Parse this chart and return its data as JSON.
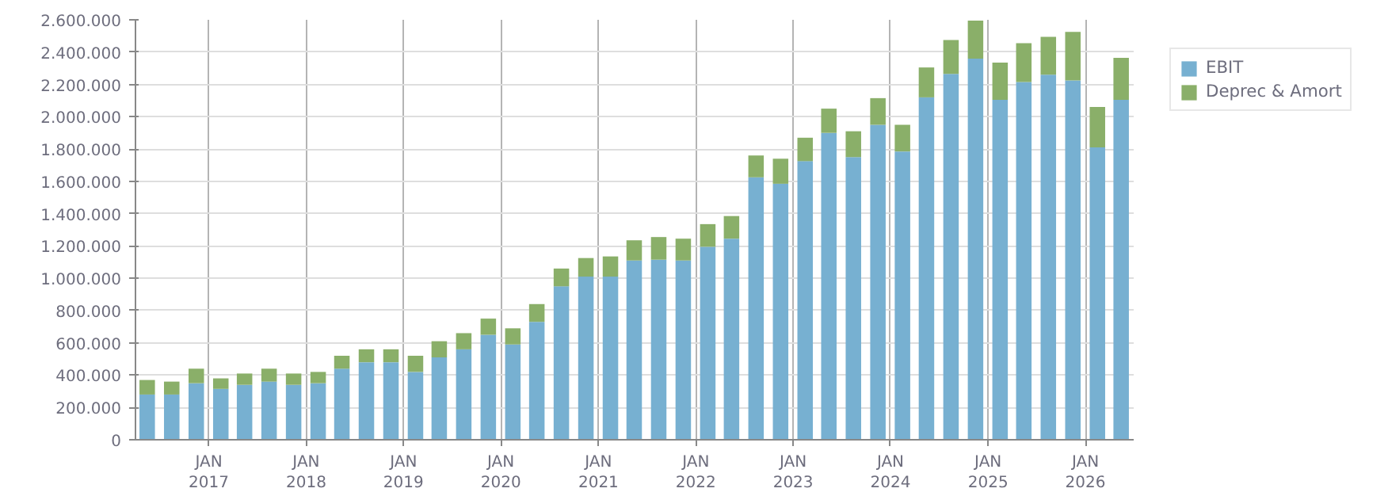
{
  "chart_data": {
    "type": "bar",
    "stacked": true,
    "x": [
      "2016-05-15",
      "2016-08-15",
      "2016-11-15",
      "2017-02-15",
      "2017-05-15",
      "2017-08-15",
      "2017-11-15",
      "2018-02-15",
      "2018-05-15",
      "2018-08-15",
      "2018-11-15",
      "2019-02-15",
      "2019-05-15",
      "2019-08-15",
      "2019-11-15",
      "2020-02-15",
      "2020-05-15",
      "2020-08-15",
      "2020-11-15",
      "2021-02-15",
      "2021-05-15",
      "2021-08-15",
      "2021-11-15",
      "2022-02-15",
      "2022-05-15",
      "2022-08-15",
      "2022-11-15",
      "2023-02-15",
      "2023-05-15",
      "2023-08-15",
      "2023-11-15",
      "2024-02-15",
      "2024-05-15",
      "2024-08-15",
      "2024-11-15",
      "2025-02-15",
      "2025-05-15",
      "2025-08-15",
      "2025-11-15",
      "2026-02-15",
      "2026-05-15"
    ],
    "series": [
      {
        "name": "EBIT",
        "color": "#77b0d1",
        "values": [
          280000,
          280000,
          350000,
          315000,
          340000,
          360000,
          340000,
          350000,
          440000,
          480000,
          480000,
          420000,
          510000,
          560000,
          650000,
          590000,
          730000,
          950000,
          1010000,
          1010000,
          1110000,
          1115000,
          1110000,
          1195000,
          1245000,
          1625000,
          1585000,
          1725000,
          1900000,
          1750000,
          1950000,
          1785000,
          2120000,
          2265000,
          2360000,
          2105000,
          2215000,
          2260000,
          2225000,
          1810000,
          2105000
        ]
      },
      {
        "name": "Deprec & Amort",
        "color": "#8aaf69",
        "values": [
          90000,
          80000,
          90000,
          65000,
          70000,
          80000,
          70000,
          70000,
          80000,
          80000,
          80000,
          100000,
          100000,
          100000,
          100000,
          100000,
          110000,
          110000,
          115000,
          125000,
          125000,
          140000,
          135000,
          140000,
          140000,
          135000,
          155000,
          145000,
          150000,
          160000,
          165000,
          165000,
          185000,
          210000,
          235000,
          230000,
          240000,
          235000,
          300000,
          250000,
          260000
        ]
      }
    ],
    "xlim": [
      "2016-04-01",
      "2026-07-01"
    ],
    "xticks": [
      {
        "value": "2017-01-01",
        "label": "JAN\n2017"
      },
      {
        "value": "2018-01-01",
        "label": "JAN\n2018"
      },
      {
        "value": "2019-01-01",
        "label": "JAN\n2019"
      },
      {
        "value": "2020-01-01",
        "label": "JAN\n2020"
      },
      {
        "value": "2021-01-01",
        "label": "JAN\n2021"
      },
      {
        "value": "2022-01-01",
        "label": "JAN\n2022"
      },
      {
        "value": "2023-01-01",
        "label": "JAN\n2023"
      },
      {
        "value": "2024-01-01",
        "label": "JAN\n2024"
      },
      {
        "value": "2025-01-01",
        "label": "JAN\n2025"
      },
      {
        "value": "2026-01-01",
        "label": "JAN\n2026"
      }
    ],
    "ylim": [
      0,
      2600000
    ],
    "yticks": [
      0,
      {
        "value": 200000,
        "label": "200.000"
      },
      {
        "value": 400000,
        "label": "400.000"
      },
      {
        "value": 600000,
        "label": "600.000"
      },
      {
        "value": 800000,
        "label": "800.000"
      },
      {
        "value": 1000000,
        "label": "1.000.000"
      },
      {
        "value": 1200000,
        "label": "1.200.000"
      },
      {
        "value": 1400000,
        "label": "1.400.000"
      },
      {
        "value": 1600000,
        "label": "1.600.000"
      },
      {
        "value": 1800000,
        "label": "1.800.000"
      },
      {
        "value": 2000000,
        "label": "2.000.000"
      },
      {
        "value": 2200000,
        "label": "2.200.000"
      },
      {
        "value": 2400000,
        "label": "2.400.000"
      },
      {
        "value": 2600000,
        "label": "2.600.000"
      }
    ],
    "grid": true,
    "legend": "top right"
  }
}
